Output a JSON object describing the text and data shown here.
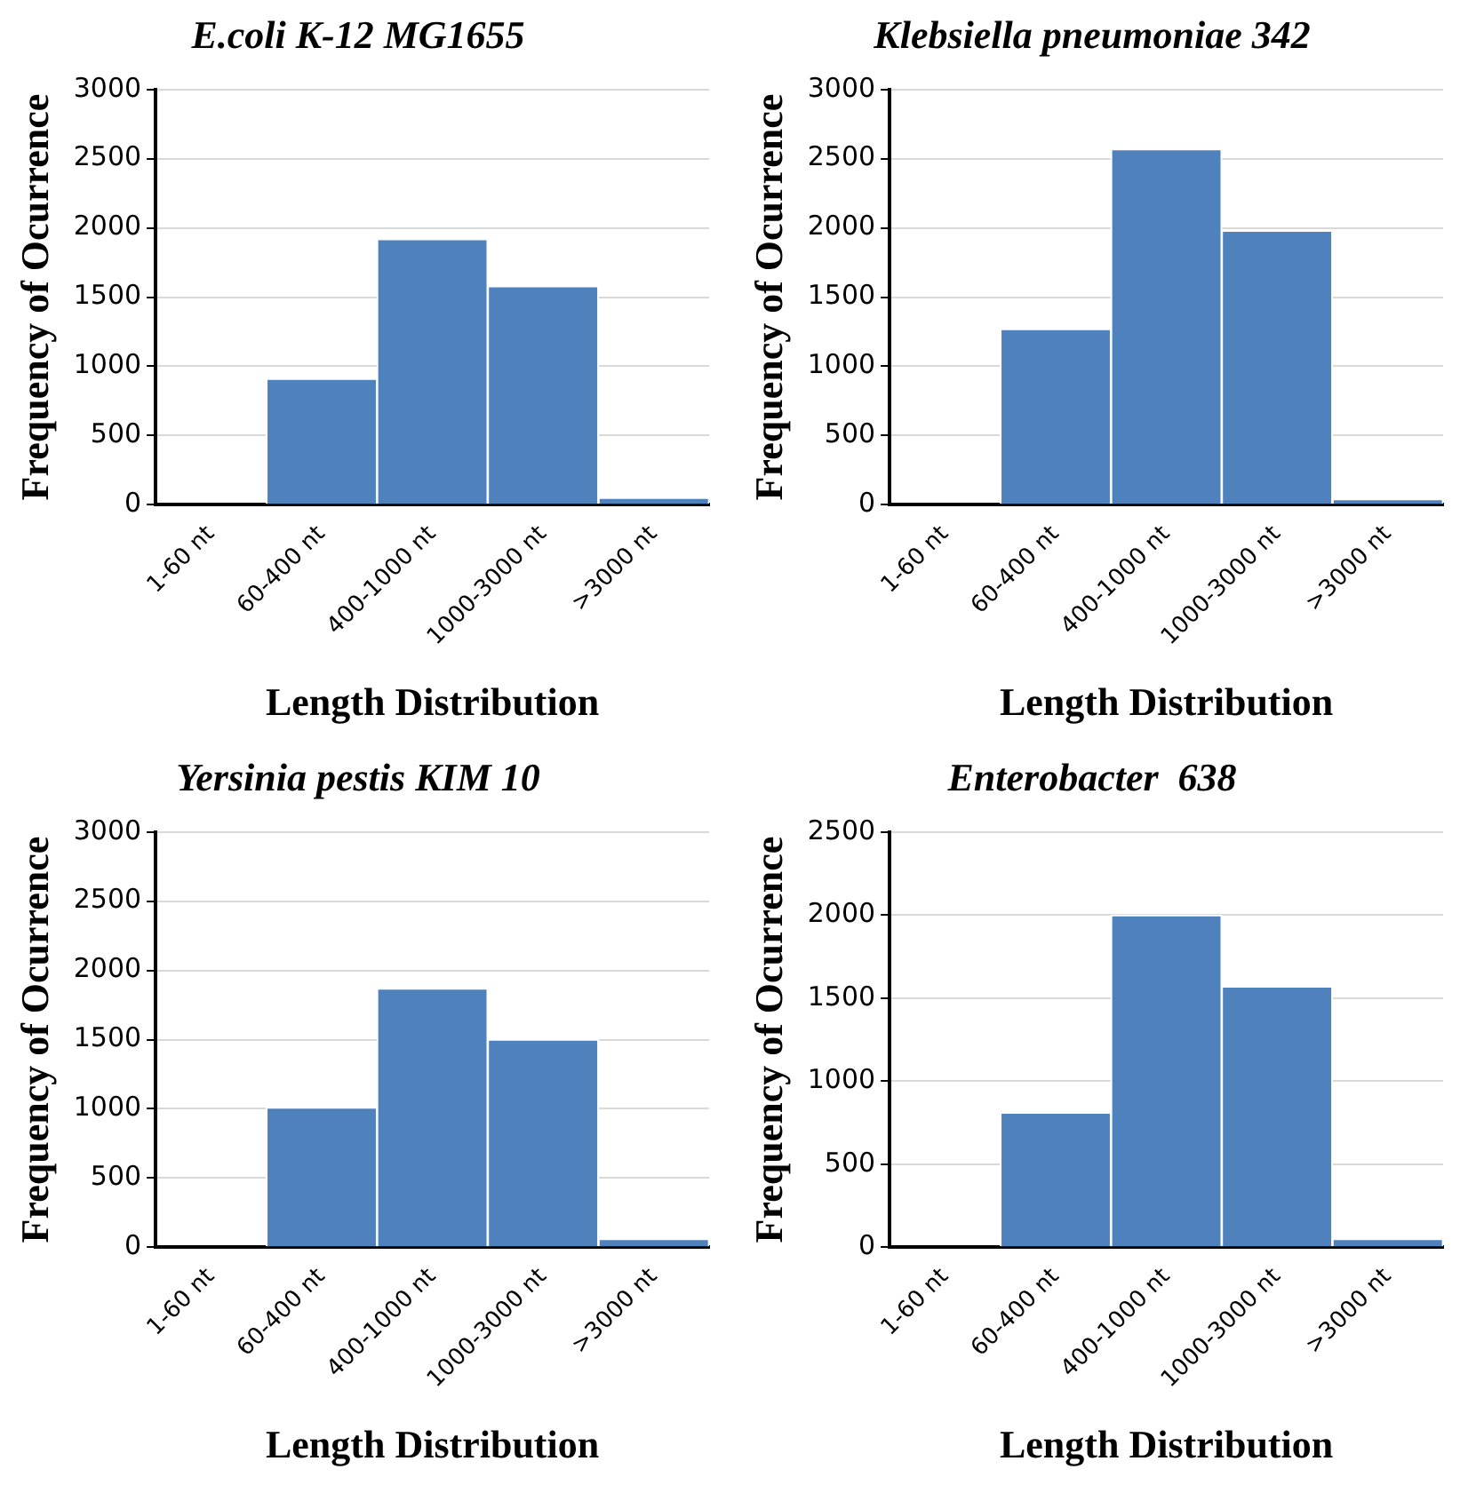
{
  "chart_data": [
    {
      "type": "bar",
      "title": "E.coli K-12 MG1655",
      "xlabel": "Length Distribution",
      "ylabel": "Frequency of Ocurrence",
      "categories": [
        "1-60 nt",
        "60-400 nt",
        "400-1000 nt",
        "1000-3000 nt",
        ">3000 nt"
      ],
      "values": [
        0,
        910,
        1920,
        1580,
        50
      ],
      "color": "#4f81bd",
      "ylim": [
        0,
        3000
      ],
      "yticks": [
        0,
        500,
        1000,
        1500,
        2000,
        2500,
        3000
      ],
      "grid": "y"
    },
    {
      "type": "bar",
      "title": "Klebsiella pneumoniae 342",
      "xlabel": "Length Distribution",
      "ylabel": "Frequency of Ocurrence",
      "categories": [
        "1-60 nt",
        "60-400 nt",
        "400-1000 nt",
        "1000-3000 nt",
        ">3000 nt"
      ],
      "values": [
        0,
        1270,
        2570,
        1980,
        40
      ],
      "color": "#4f81bd",
      "ylim": [
        0,
        3000
      ],
      "yticks": [
        0,
        500,
        1000,
        1500,
        2000,
        2500,
        3000
      ],
      "grid": "y"
    },
    {
      "type": "bar",
      "title": "Yersinia pestis KIM 10",
      "xlabel": "Length Distribution",
      "ylabel": "Frequency of Ocurrence",
      "categories": [
        "1-60 nt",
        "60-400 nt",
        "400-1000 nt",
        "1000-3000 nt",
        ">3000 nt"
      ],
      "values": [
        0,
        1010,
        1870,
        1500,
        60
      ],
      "color": "#4f81bd",
      "ylim": [
        0,
        3000
      ],
      "yticks": [
        0,
        500,
        1000,
        1500,
        2000,
        2500,
        3000
      ],
      "grid": "y"
    },
    {
      "type": "bar",
      "title": "Enterobacter  638",
      "xlabel": "Length Distribution",
      "ylabel": "Frequency of Ocurrence",
      "categories": [
        "1-60 nt",
        "60-400 nt",
        "400-1000 nt",
        "1000-3000 nt",
        ">3000 nt"
      ],
      "values": [
        0,
        810,
        2000,
        1570,
        50
      ],
      "color": "#4f81bd",
      "ylim": [
        0,
        2500
      ],
      "yticks": [
        0,
        500,
        1000,
        1500,
        2000,
        2500
      ],
      "grid": "y"
    }
  ]
}
